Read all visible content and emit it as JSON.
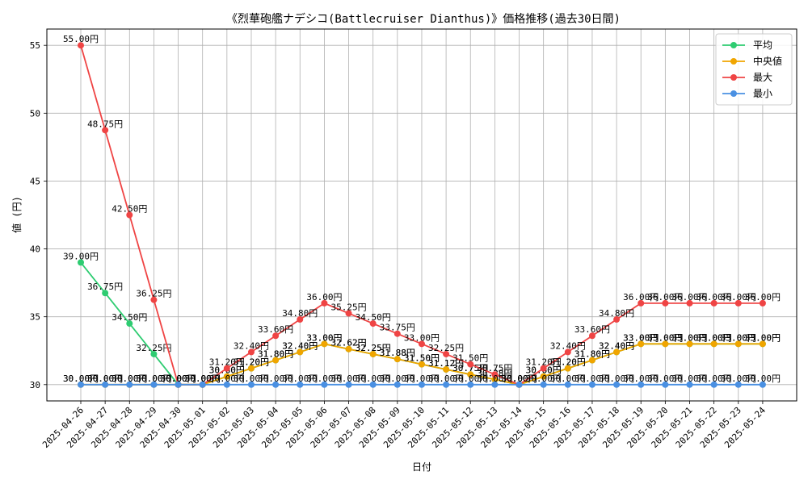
{
  "chart_data": {
    "type": "line",
    "title": "《烈華砲艦ナデシコ(Battlecruiser Dianthus)》価格推移(過去30日間)",
    "xlabel": "日付",
    "ylabel": "値 (円)",
    "ylim": [
      28.8,
      56.2
    ],
    "yticks": [
      30,
      35,
      40,
      45,
      50,
      55
    ],
    "ytick_labels": [
      "30",
      "35",
      "40",
      "45",
      "50",
      "55"
    ],
    "grid": true,
    "legend_position": "top-right",
    "label_suffix": "円",
    "categories": [
      "2025-04-26",
      "2025-04-27",
      "2025-04-28",
      "2025-04-29",
      "2025-04-30",
      "2025-05-01",
      "2025-05-02",
      "2025-05-03",
      "2025-05-04",
      "2025-05-05",
      "2025-05-06",
      "2025-05-07",
      "2025-05-08",
      "2025-05-09",
      "2025-05-10",
      "2025-05-11",
      "2025-05-12",
      "2025-05-13",
      "2025-05-14",
      "2025-05-15",
      "2025-05-16",
      "2025-05-17",
      "2025-05-18",
      "2025-05-19",
      "2025-05-20",
      "2025-05-21",
      "2025-05-22",
      "2025-05-23",
      "2025-05-24"
    ],
    "series": [
      {
        "name": "平均",
        "color": "#2ecc71",
        "values": [
          39.0,
          36.75,
          34.5,
          32.25,
          30.0,
          30.0,
          30.6,
          31.2,
          31.8,
          32.4,
          33.0,
          32.62,
          32.25,
          31.88,
          31.5,
          31.12,
          30.75,
          30.38,
          30.0,
          30.6,
          31.2,
          31.8,
          32.4,
          33.0,
          33.0,
          33.0,
          33.0,
          33.0,
          33.0
        ]
      },
      {
        "name": "中央値",
        "color": "#f0a500",
        "values": [
          30.0,
          30.0,
          30.0,
          30.0,
          30.0,
          30.0,
          30.6,
          31.2,
          31.8,
          32.4,
          33.0,
          32.62,
          32.25,
          31.88,
          31.5,
          31.12,
          30.75,
          30.38,
          30.0,
          30.6,
          31.2,
          31.8,
          32.4,
          33.0,
          33.0,
          33.0,
          33.0,
          33.0,
          33.0
        ]
      },
      {
        "name": "最大",
        "color": "#ef4444",
        "values": [
          55.0,
          48.75,
          42.5,
          36.25,
          30.0,
          30.0,
          31.2,
          32.4,
          33.6,
          34.8,
          36.0,
          35.25,
          34.5,
          33.75,
          33.0,
          32.25,
          31.5,
          30.75,
          30.0,
          31.2,
          32.4,
          33.6,
          34.8,
          36.0,
          36.0,
          36.0,
          36.0,
          36.0,
          36.0
        ]
      },
      {
        "name": "最小",
        "color": "#4a90e2",
        "values": [
          30.0,
          30.0,
          30.0,
          30.0,
          30.0,
          30.0,
          30.0,
          30.0,
          30.0,
          30.0,
          30.0,
          30.0,
          30.0,
          30.0,
          30.0,
          30.0,
          30.0,
          30.0,
          30.0,
          30.0,
          30.0,
          30.0,
          30.0,
          30.0,
          30.0,
          30.0,
          30.0,
          30.0,
          30.0
        ]
      }
    ]
  }
}
